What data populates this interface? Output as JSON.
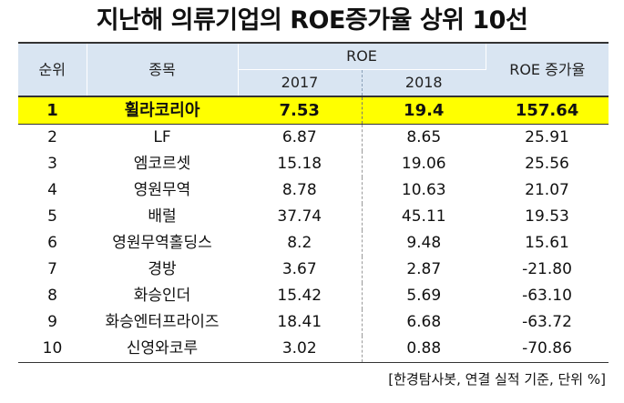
{
  "title": "지난해 의류기업의 ROE증가율 상위 10선",
  "table": {
    "headers": {
      "rank": "순위",
      "name": "종목",
      "roe": "ROE",
      "y2017": "2017",
      "y2018": "2018",
      "growth": "ROE 증가율"
    },
    "rows": [
      {
        "rank": "1",
        "name": "휠라코리아",
        "roe2017": "7.53",
        "roe2018": "19.4",
        "growth": "157.64"
      },
      {
        "rank": "2",
        "name": "LF",
        "roe2017": "6.87",
        "roe2018": "8.65",
        "growth": "25.91"
      },
      {
        "rank": "3",
        "name": "엠코르셋",
        "roe2017": "15.18",
        "roe2018": "19.06",
        "growth": "25.56"
      },
      {
        "rank": "4",
        "name": "영원무역",
        "roe2017": "8.78",
        "roe2018": "10.63",
        "growth": "21.07"
      },
      {
        "rank": "5",
        "name": "배럴",
        "roe2017": "37.74",
        "roe2018": "45.11",
        "growth": "19.53"
      },
      {
        "rank": "6",
        "name": "영원무역홀딩스",
        "roe2017": "8.2",
        "roe2018": "9.48",
        "growth": "15.61"
      },
      {
        "rank": "7",
        "name": "경방",
        "roe2017": "3.67",
        "roe2018": "2.87",
        "growth": "-21.80"
      },
      {
        "rank": "8",
        "name": "화승인더",
        "roe2017": "15.42",
        "roe2018": "5.69",
        "growth": "-63.10"
      },
      {
        "rank": "9",
        "name": "화승엔터프라이즈",
        "roe2017": "18.41",
        "roe2018": "6.68",
        "growth": "-63.72"
      },
      {
        "rank": "10",
        "name": "신영와코루",
        "roe2017": "3.02",
        "roe2018": "0.88",
        "growth": "-70.86"
      }
    ]
  },
  "highlight_color": "#ffff00",
  "header_color": "#d9e5f2",
  "source": "[한경탐사봇, 연결 실적 기준, 단위 %]"
}
